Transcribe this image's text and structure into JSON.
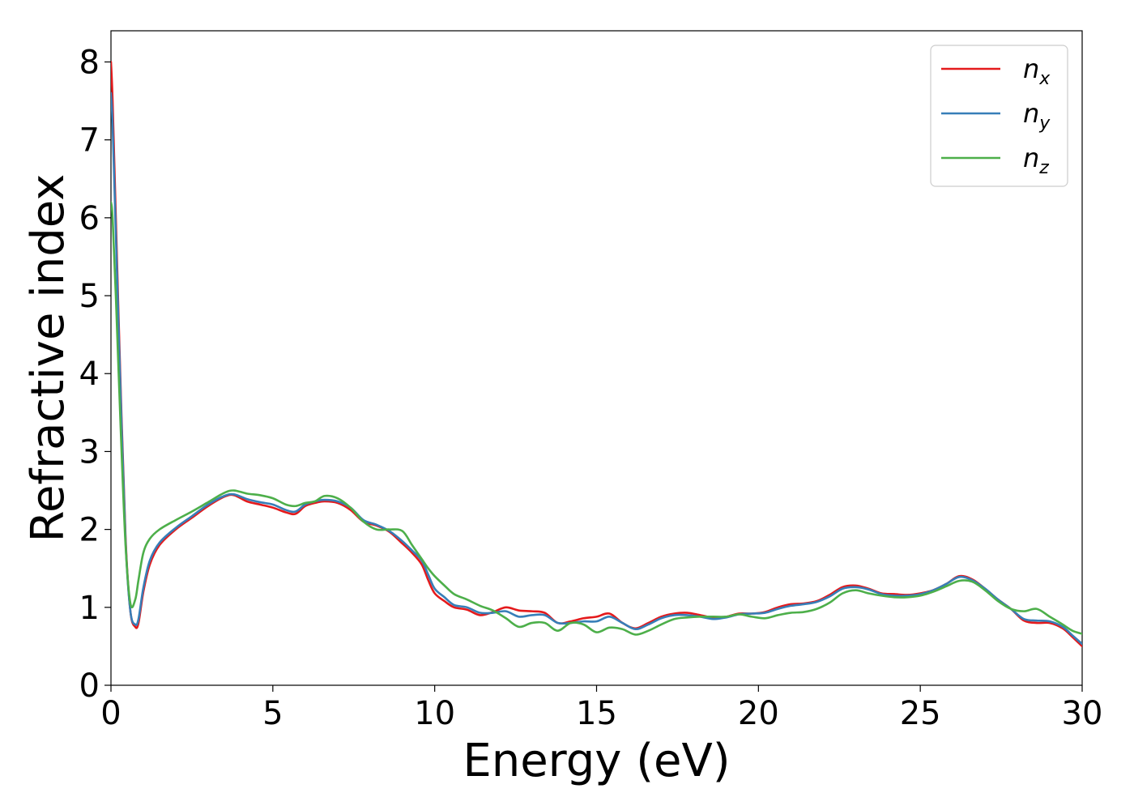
{
  "chart_data": {
    "type": "line",
    "title": "",
    "xlabel": "Energy (eV)",
    "ylabel": "Refractive index",
    "xlim": [
      0,
      30
    ],
    "ylim": [
      0,
      8.4
    ],
    "xticks": [
      0,
      5,
      10,
      15,
      20,
      25,
      30
    ],
    "yticks": [
      0,
      1,
      2,
      3,
      4,
      5,
      6,
      7,
      8
    ],
    "grid": false,
    "legend_position": "top-right",
    "series": [
      {
        "name": "n",
        "subscript": "x",
        "color": "#e41a1c",
        "x": [
          0,
          0.05,
          0.15,
          0.3,
          0.45,
          0.6,
          0.75,
          0.85,
          1.0,
          1.2,
          1.5,
          2.0,
          2.5,
          3.0,
          3.5,
          3.8,
          4.2,
          4.6,
          5.0,
          5.4,
          5.7,
          6.0,
          6.3,
          6.6,
          7.0,
          7.4,
          7.8,
          8.2,
          8.6,
          9.0,
          9.3,
          9.6,
          9.8,
          10.0,
          10.3,
          10.6,
          11.0,
          11.4,
          11.8,
          12.2,
          12.6,
          13.0,
          13.4,
          13.8,
          14.2,
          14.6,
          15.0,
          15.4,
          15.8,
          16.2,
          16.6,
          17.0,
          17.4,
          17.8,
          18.2,
          18.6,
          19.0,
          19.4,
          19.8,
          20.2,
          20.6,
          21.0,
          21.4,
          21.8,
          22.2,
          22.6,
          23.0,
          23.4,
          23.8,
          24.2,
          24.6,
          25.0,
          25.4,
          25.8,
          26.2,
          26.6,
          27.0,
          27.4,
          27.8,
          28.2,
          28.6,
          29.0,
          29.4,
          29.7,
          30.0
        ],
        "y": [
          8.0,
          7.5,
          6.0,
          3.8,
          1.9,
          0.95,
          0.75,
          0.8,
          1.2,
          1.55,
          1.8,
          2.0,
          2.15,
          2.3,
          2.42,
          2.44,
          2.36,
          2.32,
          2.28,
          2.22,
          2.2,
          2.3,
          2.34,
          2.36,
          2.34,
          2.25,
          2.1,
          2.05,
          1.97,
          1.82,
          1.7,
          1.55,
          1.35,
          1.18,
          1.08,
          1.0,
          0.97,
          0.9,
          0.94,
          1.0,
          0.96,
          0.95,
          0.93,
          0.8,
          0.82,
          0.86,
          0.88,
          0.92,
          0.8,
          0.73,
          0.8,
          0.88,
          0.92,
          0.93,
          0.9,
          0.87,
          0.88,
          0.92,
          0.92,
          0.94,
          1.0,
          1.04,
          1.05,
          1.08,
          1.16,
          1.26,
          1.28,
          1.24,
          1.18,
          1.17,
          1.16,
          1.18,
          1.22,
          1.3,
          1.4,
          1.36,
          1.24,
          1.1,
          0.98,
          0.83,
          0.8,
          0.8,
          0.73,
          0.62,
          0.5
        ]
      },
      {
        "name": "n",
        "subscript": "y",
        "color": "#377eb8",
        "x": [
          0,
          0.05,
          0.15,
          0.3,
          0.45,
          0.6,
          0.75,
          0.85,
          1.0,
          1.2,
          1.5,
          2.0,
          2.5,
          3.0,
          3.5,
          3.8,
          4.2,
          4.6,
          5.0,
          5.4,
          5.7,
          6.0,
          6.3,
          6.6,
          7.0,
          7.4,
          7.8,
          8.2,
          8.6,
          9.0,
          9.3,
          9.6,
          9.8,
          10.0,
          10.3,
          10.6,
          11.0,
          11.4,
          11.8,
          12.2,
          12.6,
          13.0,
          13.4,
          13.8,
          14.2,
          14.6,
          15.0,
          15.4,
          15.8,
          16.2,
          16.6,
          17.0,
          17.4,
          17.8,
          18.2,
          18.6,
          19.0,
          19.4,
          19.8,
          20.2,
          20.6,
          21.0,
          21.4,
          21.8,
          22.2,
          22.6,
          23.0,
          23.4,
          23.8,
          24.2,
          24.6,
          25.0,
          25.4,
          25.8,
          26.2,
          26.6,
          27.0,
          27.4,
          27.8,
          28.2,
          28.6,
          29.0,
          29.4,
          29.7,
          30.0
        ],
        "y": [
          7.6,
          7.2,
          5.8,
          3.7,
          1.85,
          0.95,
          0.78,
          0.85,
          1.25,
          1.6,
          1.83,
          2.02,
          2.17,
          2.32,
          2.43,
          2.45,
          2.39,
          2.35,
          2.32,
          2.25,
          2.23,
          2.32,
          2.36,
          2.38,
          2.36,
          2.28,
          2.12,
          2.06,
          1.98,
          1.85,
          1.73,
          1.6,
          1.42,
          1.24,
          1.13,
          1.03,
          1.0,
          0.93,
          0.93,
          0.95,
          0.88,
          0.9,
          0.9,
          0.8,
          0.8,
          0.82,
          0.82,
          0.88,
          0.8,
          0.72,
          0.78,
          0.86,
          0.9,
          0.9,
          0.88,
          0.85,
          0.87,
          0.91,
          0.92,
          0.93,
          0.98,
          1.02,
          1.04,
          1.07,
          1.14,
          1.24,
          1.26,
          1.23,
          1.17,
          1.15,
          1.15,
          1.17,
          1.22,
          1.3,
          1.39,
          1.35,
          1.24,
          1.1,
          0.98,
          0.85,
          0.83,
          0.82,
          0.75,
          0.64,
          0.53
        ]
      },
      {
        "name": "n",
        "subscript": "z",
        "color": "#4daf4a",
        "x": [
          0,
          0.05,
          0.15,
          0.3,
          0.45,
          0.6,
          0.75,
          0.85,
          1.0,
          1.2,
          1.5,
          2.0,
          2.5,
          3.0,
          3.5,
          3.8,
          4.2,
          4.6,
          5.0,
          5.4,
          5.7,
          6.0,
          6.3,
          6.6,
          7.0,
          7.4,
          7.8,
          8.2,
          8.6,
          9.0,
          9.3,
          9.6,
          9.8,
          10.0,
          10.3,
          10.6,
          11.0,
          11.4,
          11.8,
          12.2,
          12.6,
          13.0,
          13.4,
          13.8,
          14.2,
          14.6,
          15.0,
          15.4,
          15.8,
          16.2,
          16.6,
          17.0,
          17.4,
          17.8,
          18.2,
          18.6,
          19.0,
          19.4,
          19.8,
          20.2,
          20.6,
          21.0,
          21.4,
          21.8,
          22.2,
          22.6,
          23.0,
          23.4,
          23.8,
          24.2,
          24.6,
          25.0,
          25.4,
          25.8,
          26.2,
          26.6,
          27.0,
          27.4,
          27.8,
          28.2,
          28.6,
          29.0,
          29.4,
          29.7,
          30.0
        ],
        "y": [
          6.2,
          6.0,
          5.0,
          3.3,
          1.8,
          1.05,
          1.1,
          1.35,
          1.7,
          1.88,
          2.0,
          2.12,
          2.23,
          2.35,
          2.47,
          2.5,
          2.46,
          2.44,
          2.4,
          2.32,
          2.3,
          2.34,
          2.36,
          2.43,
          2.4,
          2.28,
          2.1,
          2.0,
          2.0,
          1.98,
          1.8,
          1.62,
          1.5,
          1.4,
          1.28,
          1.17,
          1.1,
          1.02,
          0.96,
          0.86,
          0.75,
          0.8,
          0.8,
          0.7,
          0.8,
          0.78,
          0.68,
          0.74,
          0.72,
          0.65,
          0.7,
          0.78,
          0.85,
          0.87,
          0.88,
          0.88,
          0.88,
          0.91,
          0.88,
          0.86,
          0.9,
          0.93,
          0.94,
          0.98,
          1.06,
          1.18,
          1.22,
          1.18,
          1.15,
          1.13,
          1.13,
          1.15,
          1.2,
          1.27,
          1.34,
          1.33,
          1.22,
          1.08,
          0.98,
          0.95,
          0.98,
          0.88,
          0.78,
          0.7,
          0.66
        ]
      }
    ]
  }
}
